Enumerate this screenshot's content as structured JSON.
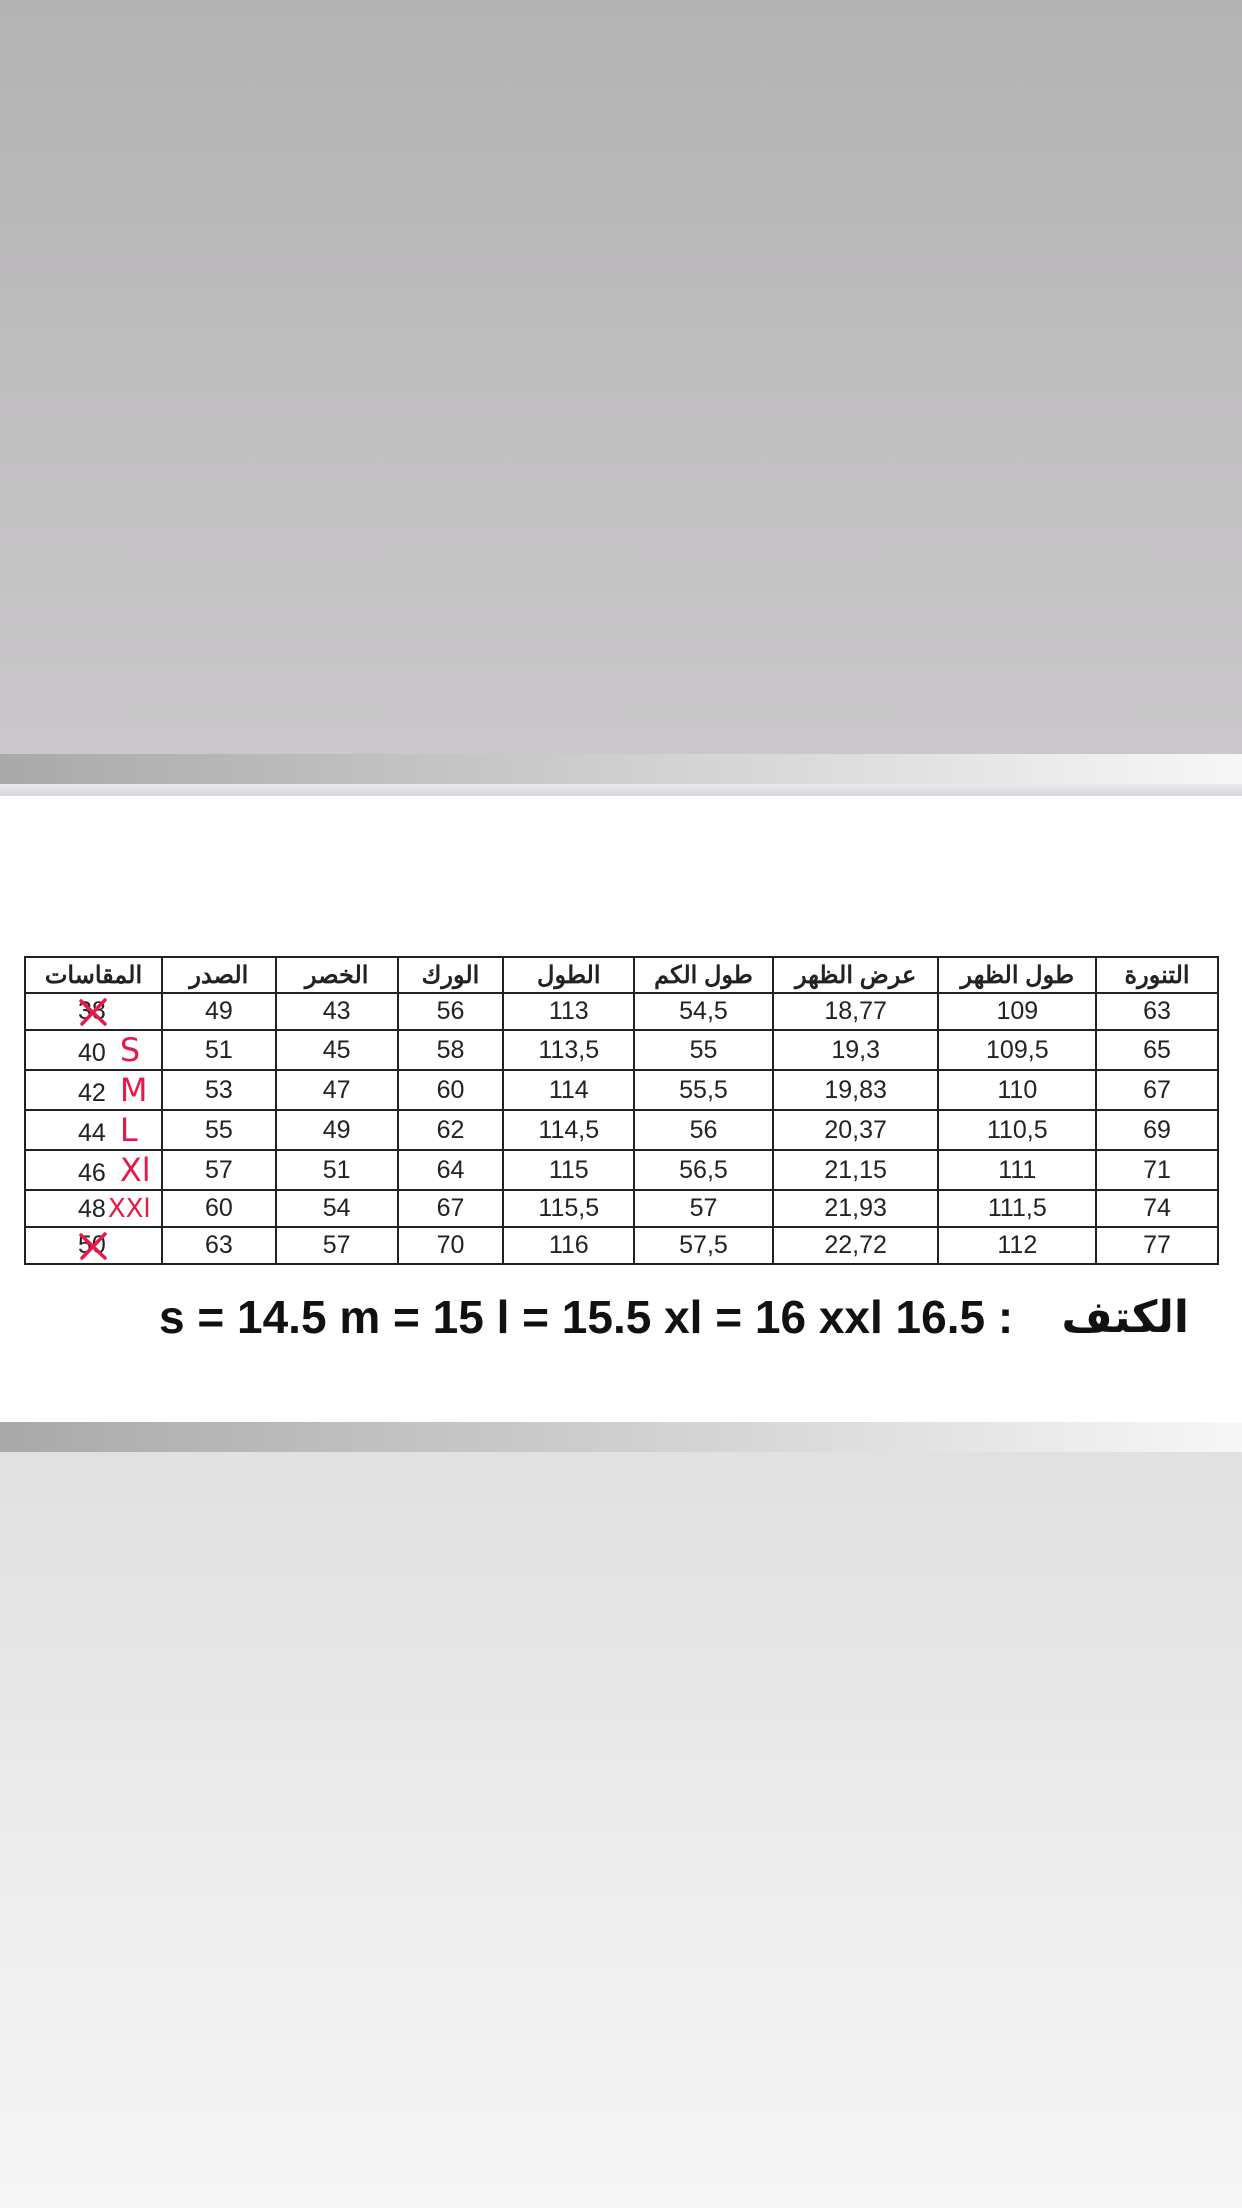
{
  "table": {
    "headers": [
      "المقاسات",
      "الصدر",
      "الخصر",
      "الورك",
      "الطول",
      "طول الكم",
      "عرض الظهر",
      "طول الظهر",
      "التنورة"
    ],
    "rows": [
      {
        "size": "38",
        "letter": "",
        "crossed": true,
        "values": [
          "49",
          "43",
          "56",
          "113",
          "54,5",
          "18,77",
          "109",
          "63"
        ]
      },
      {
        "size": "40",
        "letter": "S",
        "crossed": false,
        "values": [
          "51",
          "45",
          "58",
          "113,5",
          "55",
          "19,3",
          "109,5",
          "65"
        ]
      },
      {
        "size": "42",
        "letter": "M",
        "crossed": false,
        "values": [
          "53",
          "47",
          "60",
          "114",
          "55,5",
          "19,83",
          "110",
          "67"
        ]
      },
      {
        "size": "44",
        "letter": "L",
        "crossed": false,
        "values": [
          "55",
          "49",
          "62",
          "114,5",
          "56",
          "20,37",
          "110,5",
          "69"
        ]
      },
      {
        "size": "46",
        "letter": "Xl",
        "crossed": false,
        "values": [
          "57",
          "51",
          "64",
          "115",
          "56,5",
          "21,15",
          "111",
          "71"
        ]
      },
      {
        "size": "48",
        "letter": "XXl",
        "crossed": false,
        "values": [
          "60",
          "54",
          "67",
          "115,5",
          "57",
          "21,93",
          "111,5",
          "74"
        ]
      },
      {
        "size": "50",
        "letter": "",
        "crossed": true,
        "values": [
          "63",
          "57",
          "70",
          "116",
          "57,5",
          "22,72",
          "112",
          "77"
        ]
      }
    ]
  },
  "note": {
    "values": "s = 14.5 m = 15 l = 15.5 xl = 16 xxl 16.5 :",
    "label": "الكتف"
  },
  "colors": {
    "annotation": "#e8194a"
  }
}
